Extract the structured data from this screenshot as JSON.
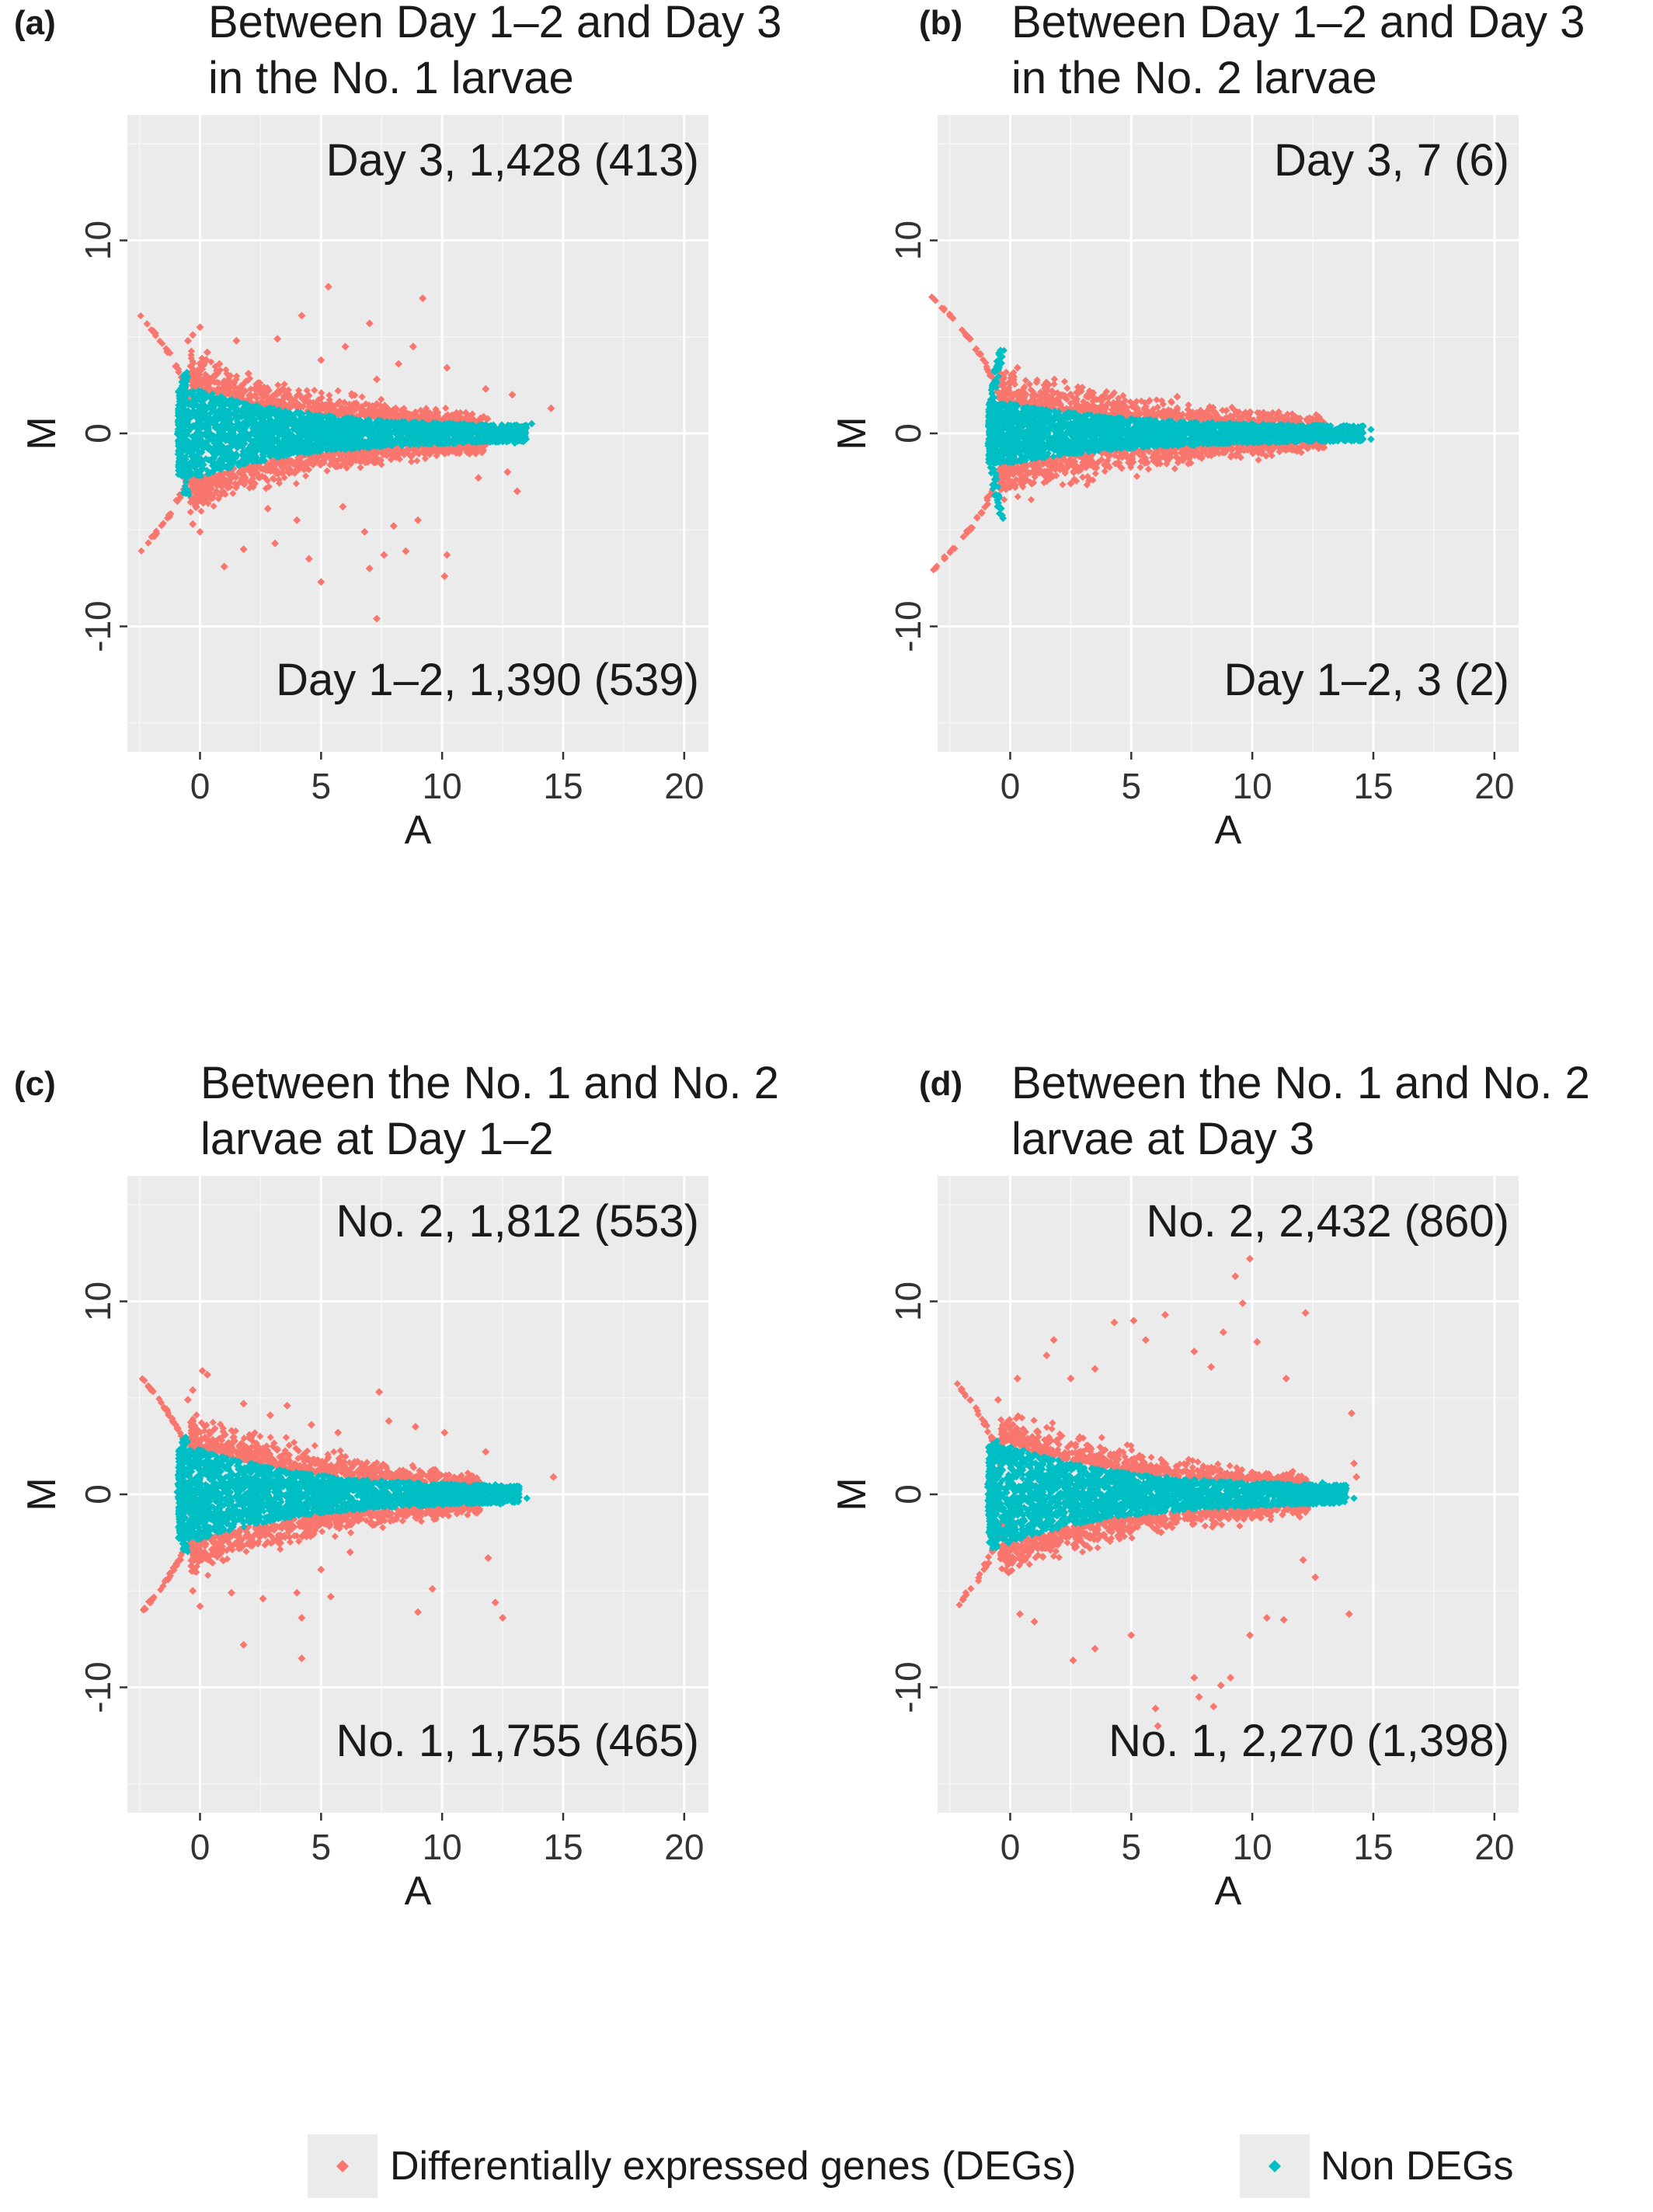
{
  "legend": {
    "items": [
      {
        "label": "Differentially expressed genes (DEGs)",
        "color": "#f8766d",
        "marker": "diamond"
      },
      {
        "label": "Non DEGs",
        "color": "#00bfc4",
        "marker": "diamond"
      }
    ],
    "placement": "bottom"
  },
  "chart_data": [
    {
      "type": "scatter",
      "tag": "(a)",
      "title_lines": [
        "Between Day 1–2 and Day 3",
        "in  the No. 1 larvae"
      ],
      "xlabel": "A",
      "ylabel": "M",
      "xlim": [
        -3,
        21
      ],
      "ylim": [
        -16.5,
        16.5
      ],
      "xticks": [
        0,
        5,
        10,
        15,
        20
      ],
      "yticks": [
        -10,
        0,
        10
      ],
      "grid": true,
      "annotation_top": "Day 3, 1,428 (413)",
      "annotation_bottom": "Day 1–2, 1,390 (539)",
      "nondeg_envelope": {
        "amax_near_zero": 3.2,
        "halfwidth_max": 2.3,
        "decay_a": 4.5,
        "halfwidth_min": 0.35,
        "a_max": 13.8
      },
      "deg_points": [
        [
          -0.5,
          4.8
        ],
        [
          -0.3,
          5.1
        ],
        [
          0.0,
          5.5
        ],
        [
          0.3,
          4.2
        ],
        [
          0.8,
          3.6
        ],
        [
          1.5,
          4.8
        ],
        [
          2.0,
          3.1
        ],
        [
          3.2,
          4.9
        ],
        [
          4.2,
          6.1
        ],
        [
          5.0,
          3.8
        ],
        [
          5.3,
          7.6
        ],
        [
          6.0,
          4.5
        ],
        [
          7.0,
          5.7
        ],
        [
          7.3,
          2.8
        ],
        [
          8.2,
          3.6
        ],
        [
          8.8,
          4.5
        ],
        [
          9.2,
          7.0
        ],
        [
          10.2,
          3.4
        ],
        [
          11.8,
          2.3
        ],
        [
          12.9,
          2.0
        ],
        [
          14.5,
          1.3
        ],
        [
          -0.3,
          -4.7
        ],
        [
          0.0,
          -5.1
        ],
        [
          0.7,
          -2.7
        ],
        [
          1.0,
          -6.9
        ],
        [
          1.8,
          -6.0
        ],
        [
          2.8,
          -3.9
        ],
        [
          3.1,
          -5.7
        ],
        [
          4.0,
          -4.5
        ],
        [
          4.5,
          -6.5
        ],
        [
          5.0,
          -7.7
        ],
        [
          5.9,
          -3.8
        ],
        [
          6.8,
          -5.1
        ],
        [
          7.0,
          -7.0
        ],
        [
          7.3,
          -9.6
        ],
        [
          7.6,
          -6.3
        ],
        [
          8.0,
          -4.8
        ],
        [
          8.5,
          -6.1
        ],
        [
          9.0,
          -4.5
        ],
        [
          10.2,
          -6.3
        ],
        [
          10.1,
          -7.4
        ],
        [
          11.5,
          -2.3
        ],
        [
          13.1,
          -3.0
        ],
        [
          12.7,
          -2.0
        ]
      ],
      "nondeg_extreme_points": [
        [
          12.5,
          0.4
        ],
        [
          13.3,
          0.3
        ],
        [
          13.7,
          0.5
        ],
        [
          12.6,
          -0.3
        ],
        [
          13.0,
          -0.5
        ]
      ]
    },
    {
      "type": "scatter",
      "tag": "(b)",
      "title_lines": [
        "Between Day 1–2 and Day 3",
        "in the No. 2 larvae"
      ],
      "xlabel": "A",
      "ylabel": "M",
      "xlim": [
        -3,
        21
      ],
      "ylim": [
        -16.5,
        16.5
      ],
      "xticks": [
        0,
        5,
        10,
        15,
        20
      ],
      "yticks": [
        -10,
        0,
        10
      ],
      "grid": true,
      "annotation_top": "Day 3, 7 (6)",
      "annotation_bottom": "Day 1–2, 3 (2)",
      "nondeg_envelope": {
        "amax_near_zero": 4.3,
        "halfwidth_max": 1.6,
        "decay_a": 5.0,
        "halfwidth_min": 0.35,
        "a_max": 14.9
      },
      "deg_points": [
        [
          0.3,
          3.4
        ],
        [
          2.8,
          2.4
        ],
        [
          6.9,
          1.9
        ],
        [
          0.2,
          -1.4
        ],
        [
          2.5,
          -2.6
        ],
        [
          1.0,
          -1.9
        ],
        [
          7.5,
          -1.1
        ],
        [
          4.6,
          -1.8
        ],
        [
          5.1,
          1.5
        ],
        [
          9.9,
          1.1
        ]
      ],
      "nondeg_extreme_points": [
        [
          -0.4,
          4.3
        ],
        [
          -0.3,
          -4.4
        ],
        [
          14.9,
          0.2
        ],
        [
          14.9,
          -0.3
        ],
        [
          13.9,
          0.4
        ]
      ]
    },
    {
      "type": "scatter",
      "tag": "(c)",
      "title_lines": [
        "Between the No. 1 and No. 2",
        "larvae at Day 1–2"
      ],
      "xlabel": "A",
      "ylabel": "M",
      "xlim": [
        -3,
        21
      ],
      "ylim": [
        -16.5,
        16.5
      ],
      "xticks": [
        0,
        5,
        10,
        15,
        20
      ],
      "yticks": [
        -10,
        0,
        10
      ],
      "grid": true,
      "annotation_top": "No. 2, 1,812 (553)",
      "annotation_bottom": "No. 1, 1,755 (465)",
      "nondeg_envelope": {
        "amax_near_zero": 3.0,
        "halfwidth_max": 2.4,
        "decay_a": 4.5,
        "halfwidth_min": 0.35,
        "a_max": 13.5
      },
      "deg_points": [
        [
          -0.5,
          4.9
        ],
        [
          -0.3,
          5.4
        ],
        [
          0.3,
          6.2
        ],
        [
          0.1,
          6.4
        ],
        [
          1.8,
          4.7
        ],
        [
          2.9,
          4.1
        ],
        [
          3.6,
          4.6
        ],
        [
          4.6,
          3.6
        ],
        [
          5.7,
          3.2
        ],
        [
          7.4,
          5.3
        ],
        [
          7.8,
          3.8
        ],
        [
          8.9,
          3.5
        ],
        [
          10.1,
          3.2
        ],
        [
          11.8,
          2.2
        ],
        [
          14.6,
          0.9
        ],
        [
          -0.3,
          -5.0
        ],
        [
          0.0,
          -5.8
        ],
        [
          1.3,
          -5.1
        ],
        [
          1.8,
          -7.8
        ],
        [
          2.6,
          -5.4
        ],
        [
          4.0,
          -5.1
        ],
        [
          4.2,
          -8.5
        ],
        [
          4.2,
          -6.4
        ],
        [
          5.0,
          -3.9
        ],
        [
          5.4,
          -5.3
        ],
        [
          6.2,
          -3.0
        ],
        [
          9.0,
          -6.1
        ],
        [
          9.6,
          -4.9
        ],
        [
          12.2,
          -5.6
        ],
        [
          12.5,
          -6.4
        ],
        [
          11.9,
          -3.3
        ]
      ],
      "nondeg_extreme_points": [
        [
          12.2,
          0.5
        ],
        [
          12.8,
          0.4
        ],
        [
          13.5,
          -0.2
        ],
        [
          12.4,
          -0.5
        ]
      ]
    },
    {
      "type": "scatter",
      "tag": "(d)",
      "title_lines": [
        "Between the No. 1 and No. 2",
        "larvae at Day 3"
      ],
      "xlabel": "A",
      "ylabel": "M",
      "xlim": [
        -3,
        21
      ],
      "ylim": [
        -16.5,
        16.5
      ],
      "xticks": [
        0,
        5,
        10,
        15,
        20
      ],
      "yticks": [
        -10,
        0,
        10
      ],
      "grid": true,
      "annotation_top": "No. 2, 2,432 (860)",
      "annotation_bottom": "No. 1, 2,270 (1,398)",
      "nondeg_envelope": {
        "amax_near_zero": 2.8,
        "halfwidth_max": 2.6,
        "decay_a": 4.5,
        "halfwidth_min": 0.4,
        "a_max": 14.2
      },
      "deg_points": [
        [
          -0.5,
          4.9
        ],
        [
          0.3,
          6.0
        ],
        [
          1.5,
          7.2
        ],
        [
          1.8,
          8.0
        ],
        [
          2.5,
          6.0
        ],
        [
          3.5,
          6.5
        ],
        [
          4.3,
          8.9
        ],
        [
          5.1,
          9.0
        ],
        [
          5.6,
          8.0
        ],
        [
          6.4,
          9.3
        ],
        [
          7.6,
          7.4
        ],
        [
          8.3,
          6.6
        ],
        [
          9.3,
          11.3
        ],
        [
          9.6,
          9.9
        ],
        [
          9.9,
          12.2
        ],
        [
          8.8,
          8.4
        ],
        [
          10.2,
          7.9
        ],
        [
          12.2,
          9.4
        ],
        [
          11.4,
          6.0
        ],
        [
          14.1,
          4.2
        ],
        [
          -0.3,
          -3.0
        ],
        [
          0.4,
          -6.2
        ],
        [
          1.0,
          -6.6
        ],
        [
          2.6,
          -8.6
        ],
        [
          3.5,
          -8.0
        ],
        [
          5.0,
          -7.3
        ],
        [
          6.0,
          -11.1
        ],
        [
          6.1,
          -12.0
        ],
        [
          7.6,
          -9.5
        ],
        [
          7.8,
          -10.5
        ],
        [
          8.4,
          -11.0
        ],
        [
          8.7,
          -9.9
        ],
        [
          9.1,
          -9.5
        ],
        [
          9.9,
          -7.3
        ],
        [
          10.6,
          -6.4
        ],
        [
          11.3,
          -6.5
        ],
        [
          12.1,
          -3.4
        ],
        [
          12.6,
          -4.3
        ],
        [
          14.0,
          -6.2
        ],
        [
          14.2,
          1.6
        ],
        [
          14.3,
          0.9
        ]
      ],
      "nondeg_extreme_points": [
        [
          13.6,
          0.3
        ],
        [
          14.2,
          -0.2
        ],
        [
          13.3,
          -0.4
        ],
        [
          12.9,
          0.6
        ]
      ]
    }
  ]
}
